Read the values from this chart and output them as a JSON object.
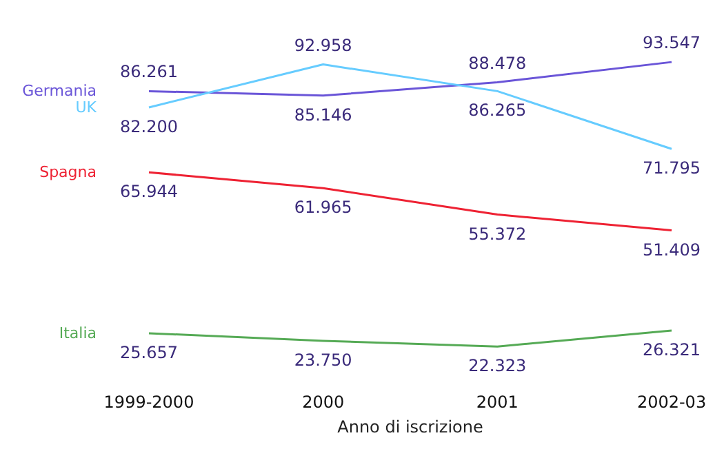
{
  "chart_data": {
    "type": "line",
    "xlabel": "Anno di iscrizione",
    "categories": [
      "1999-2000",
      "2000",
      "2001",
      "2002-03"
    ],
    "grid": false,
    "legend": false,
    "marker": "none",
    "line_style": "solid",
    "series": [
      {
        "name": "Germania",
        "color": "#6a55d8",
        "values": [
          86261,
          85146,
          88478,
          93547
        ],
        "value_labels": [
          "86.261",
          "85.146",
          "88.478",
          "93.547"
        ]
      },
      {
        "name": "UK",
        "color": "#66ccff",
        "values": [
          82200,
          92958,
          86265,
          71795
        ],
        "value_labels": [
          "82.200",
          "92.958",
          "86.265",
          "71.795"
        ]
      },
      {
        "name": "Spagna",
        "color": "#ee2233",
        "values": [
          65944,
          61965,
          55372,
          51409
        ],
        "value_labels": [
          "65.944",
          "61.965",
          "55.372",
          "51.409"
        ]
      },
      {
        "name": "Italia",
        "color": "#55aa55",
        "values": [
          25657,
          23750,
          22323,
          26321
        ],
        "value_labels": [
          "25.657",
          "23.750",
          "22.323",
          "26.321"
        ]
      }
    ]
  }
}
